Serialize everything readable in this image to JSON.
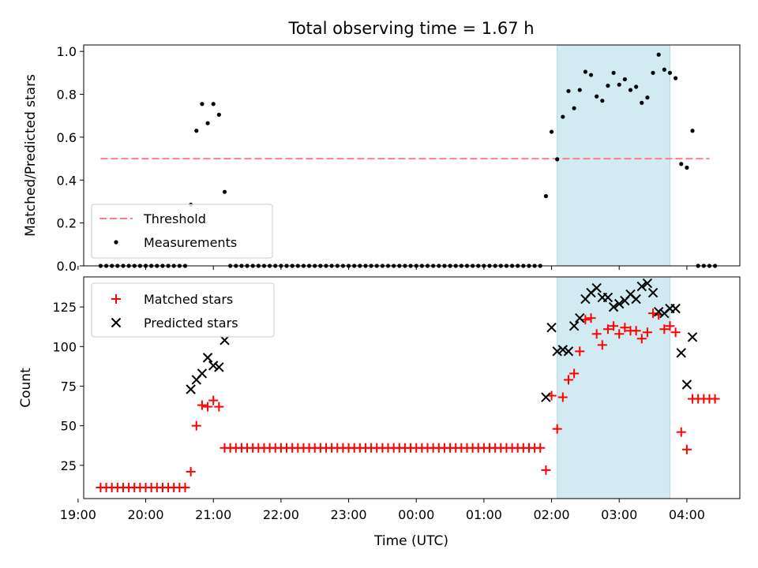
{
  "chart_data": [
    {
      "type": "scatter",
      "title": "Total observing time = 1.67 h",
      "xlabel": "",
      "ylabel": "Matched/Predicted stars",
      "ylim": [
        0,
        1.03
      ],
      "xlim": [
        "19:05",
        "04:47"
      ],
      "xticks": [
        "19:00",
        "20:00",
        "21:00",
        "22:00",
        "23:00",
        "00:00",
        "01:00",
        "02:00",
        "03:00",
        "04:00"
      ],
      "ytick_labels": [
        "0.0",
        "0.2",
        "0.4",
        "0.6",
        "0.8",
        "1.0"
      ],
      "shaded_interval": [
        "02:05",
        "03:45"
      ],
      "shaded_color": "#add8e6",
      "legend_position": "lower left",
      "threshold": {
        "name": "Threshold",
        "value": 0.5,
        "x_range": [
          "19:20",
          "04:20"
        ],
        "color": "#ff7f7f"
      },
      "series": [
        {
          "name": "Measurements",
          "color": "#000000",
          "points": [
            [
              "19:20",
              0
            ],
            [
              "19:25",
              0
            ],
            [
              "19:30",
              0
            ],
            [
              "19:35",
              0
            ],
            [
              "19:40",
              0
            ],
            [
              "19:45",
              0
            ],
            [
              "19:50",
              0
            ],
            [
              "19:55",
              0
            ],
            [
              "20:00",
              0
            ],
            [
              "20:05",
              0
            ],
            [
              "20:10",
              0
            ],
            [
              "20:15",
              0
            ],
            [
              "20:20",
              0
            ],
            [
              "20:25",
              0
            ],
            [
              "20:30",
              0
            ],
            [
              "20:35",
              0
            ],
            [
              "20:40",
              0.285
            ],
            [
              "20:45",
              0.63
            ],
            [
              "20:50",
              0.755
            ],
            [
              "20:55",
              0.665
            ],
            [
              "21:00",
              0.755
            ],
            [
              "21:05",
              0.705
            ],
            [
              "21:10",
              0.345
            ],
            [
              "21:15",
              0
            ],
            [
              "21:20",
              0
            ],
            [
              "21:25",
              0
            ],
            [
              "21:30",
              0
            ],
            [
              "21:35",
              0
            ],
            [
              "21:40",
              0
            ],
            [
              "21:45",
              0
            ],
            [
              "21:50",
              0
            ],
            [
              "21:55",
              0
            ],
            [
              "22:00",
              0
            ],
            [
              "22:05",
              0
            ],
            [
              "22:10",
              0
            ],
            [
              "22:15",
              0
            ],
            [
              "22:20",
              0
            ],
            [
              "22:25",
              0
            ],
            [
              "22:30",
              0
            ],
            [
              "22:35",
              0
            ],
            [
              "22:40",
              0
            ],
            [
              "22:45",
              0
            ],
            [
              "22:50",
              0
            ],
            [
              "22:55",
              0
            ],
            [
              "23:00",
              0
            ],
            [
              "23:05",
              0
            ],
            [
              "23:10",
              0
            ],
            [
              "23:15",
              0
            ],
            [
              "23:20",
              0
            ],
            [
              "23:25",
              0
            ],
            [
              "23:30",
              0
            ],
            [
              "23:35",
              0
            ],
            [
              "23:40",
              0
            ],
            [
              "23:45",
              0
            ],
            [
              "23:50",
              0
            ],
            [
              "23:55",
              0
            ],
            [
              "00:00",
              0
            ],
            [
              "00:05",
              0
            ],
            [
              "00:10",
              0
            ],
            [
              "00:15",
              0
            ],
            [
              "00:20",
              0
            ],
            [
              "00:25",
              0
            ],
            [
              "00:30",
              0
            ],
            [
              "00:35",
              0
            ],
            [
              "00:40",
              0
            ],
            [
              "00:45",
              0
            ],
            [
              "00:50",
              0
            ],
            [
              "00:55",
              0
            ],
            [
              "01:00",
              0
            ],
            [
              "01:05",
              0
            ],
            [
              "01:10",
              0
            ],
            [
              "01:15",
              0
            ],
            [
              "01:20",
              0
            ],
            [
              "01:25",
              0
            ],
            [
              "01:30",
              0
            ],
            [
              "01:35",
              0
            ],
            [
              "01:40",
              0
            ],
            [
              "01:45",
              0
            ],
            [
              "01:50",
              0
            ],
            [
              "01:55",
              0.325
            ],
            [
              "02:00",
              0.625
            ],
            [
              "02:05",
              0.497
            ],
            [
              "02:10",
              0.695
            ],
            [
              "02:15",
              0.815
            ],
            [
              "02:20",
              0.735
            ],
            [
              "02:25",
              0.82
            ],
            [
              "02:30",
              0.905
            ],
            [
              "02:35",
              0.89
            ],
            [
              "02:40",
              0.79
            ],
            [
              "02:45",
              0.77
            ],
            [
              "02:50",
              0.84
            ],
            [
              "02:55",
              0.9
            ],
            [
              "03:00",
              0.845
            ],
            [
              "03:05",
              0.87
            ],
            [
              "03:10",
              0.82
            ],
            [
              "03:15",
              0.835
            ],
            [
              "03:20",
              0.76
            ],
            [
              "03:25",
              0.785
            ],
            [
              "03:30",
              0.9
            ],
            [
              "03:35",
              0.985
            ],
            [
              "03:40",
              0.915
            ],
            [
              "03:45",
              0.9
            ],
            [
              "03:50",
              0.875
            ],
            [
              "03:55",
              0.475
            ],
            [
              "04:00",
              0.458
            ],
            [
              "04:05",
              0.63
            ],
            [
              "04:10",
              0
            ],
            [
              "04:15",
              0
            ],
            [
              "04:20",
              0
            ],
            [
              "04:25",
              0
            ]
          ]
        }
      ]
    },
    {
      "type": "scatter",
      "title": "",
      "xlabel": "Time (UTC)",
      "ylabel": "Count",
      "ylim": [
        4,
        144
      ],
      "xlim": [
        "19:05",
        "04:47"
      ],
      "xticks": [
        "19:00",
        "20:00",
        "21:00",
        "22:00",
        "23:00",
        "00:00",
        "01:00",
        "02:00",
        "03:00",
        "04:00"
      ],
      "ytick_labels": [
        "25",
        "50",
        "75",
        "100",
        "125"
      ],
      "shaded_interval": [
        "02:05",
        "03:45"
      ],
      "shaded_color": "#add8e6",
      "legend_position": "upper left",
      "series": [
        {
          "name": "Matched stars",
          "marker": "+",
          "color": "#ff0000",
          "points": [
            [
              "19:20",
              11
            ],
            [
              "19:25",
              11
            ],
            [
              "19:30",
              11
            ],
            [
              "19:35",
              11
            ],
            [
              "19:40",
              11
            ],
            [
              "19:45",
              11
            ],
            [
              "19:50",
              11
            ],
            [
              "19:55",
              11
            ],
            [
              "20:00",
              11
            ],
            [
              "20:05",
              11
            ],
            [
              "20:10",
              11
            ],
            [
              "20:15",
              11
            ],
            [
              "20:20",
              11
            ],
            [
              "20:25",
              11
            ],
            [
              "20:30",
              11
            ],
            [
              "20:35",
              11
            ],
            [
              "20:40",
              21
            ],
            [
              "20:45",
              50
            ],
            [
              "20:50",
              63
            ],
            [
              "20:55",
              62
            ],
            [
              "21:00",
              66
            ],
            [
              "21:05",
              62
            ],
            [
              "21:10",
              36
            ],
            [
              "21:15",
              36
            ],
            [
              "21:20",
              36
            ],
            [
              "21:25",
              36
            ],
            [
              "21:30",
              36
            ],
            [
              "21:35",
              36
            ],
            [
              "21:40",
              36
            ],
            [
              "21:45",
              36
            ],
            [
              "21:50",
              36
            ],
            [
              "21:55",
              36
            ],
            [
              "22:00",
              36
            ],
            [
              "22:05",
              36
            ],
            [
              "22:10",
              36
            ],
            [
              "22:15",
              36
            ],
            [
              "22:20",
              36
            ],
            [
              "22:25",
              36
            ],
            [
              "22:30",
              36
            ],
            [
              "22:35",
              36
            ],
            [
              "22:40",
              36
            ],
            [
              "22:45",
              36
            ],
            [
              "22:50",
              36
            ],
            [
              "22:55",
              36
            ],
            [
              "23:00",
              36
            ],
            [
              "23:05",
              36
            ],
            [
              "23:10",
              36
            ],
            [
              "23:15",
              36
            ],
            [
              "23:20",
              36
            ],
            [
              "23:25",
              36
            ],
            [
              "23:30",
              36
            ],
            [
              "23:35",
              36
            ],
            [
              "23:40",
              36
            ],
            [
              "23:45",
              36
            ],
            [
              "23:50",
              36
            ],
            [
              "23:55",
              36
            ],
            [
              "00:00",
              36
            ],
            [
              "00:05",
              36
            ],
            [
              "00:10",
              36
            ],
            [
              "00:15",
              36
            ],
            [
              "00:20",
              36
            ],
            [
              "00:25",
              36
            ],
            [
              "00:30",
              36
            ],
            [
              "00:35",
              36
            ],
            [
              "00:40",
              36
            ],
            [
              "00:45",
              36
            ],
            [
              "00:50",
              36
            ],
            [
              "00:55",
              36
            ],
            [
              "01:00",
              36
            ],
            [
              "01:05",
              36
            ],
            [
              "01:10",
              36
            ],
            [
              "01:15",
              36
            ],
            [
              "01:20",
              36
            ],
            [
              "01:25",
              36
            ],
            [
              "01:30",
              36
            ],
            [
              "01:35",
              36
            ],
            [
              "01:40",
              36
            ],
            [
              "01:45",
              36
            ],
            [
              "01:50",
              36
            ],
            [
              "01:55",
              22
            ],
            [
              "02:00",
              69
            ],
            [
              "02:05",
              48
            ],
            [
              "02:10",
              68
            ],
            [
              "02:15",
              79
            ],
            [
              "02:20",
              83
            ],
            [
              "02:25",
              97
            ],
            [
              "02:30",
              117
            ],
            [
              "02:35",
              118
            ],
            [
              "02:40",
              108
            ],
            [
              "02:45",
              101
            ],
            [
              "02:50",
              111
            ],
            [
              "02:55",
              113
            ],
            [
              "03:00",
              108
            ],
            [
              "03:05",
              112
            ],
            [
              "03:10",
              110
            ],
            [
              "03:15",
              110
            ],
            [
              "03:20",
              105
            ],
            [
              "03:25",
              109
            ],
            [
              "03:30",
              121
            ],
            [
              "03:35",
              120
            ],
            [
              "03:40",
              111
            ],
            [
              "03:45",
              113
            ],
            [
              "03:50",
              109
            ],
            [
              "03:55",
              46
            ],
            [
              "04:00",
              35
            ],
            [
              "04:05",
              67
            ],
            [
              "04:10",
              67
            ],
            [
              "04:15",
              67
            ],
            [
              "04:20",
              67
            ],
            [
              "04:25",
              67
            ]
          ]
        },
        {
          "name": "Predicted stars",
          "marker": "x",
          "color": "#000000",
          "points": [
            [
              "20:40",
              73
            ],
            [
              "20:45",
              79
            ],
            [
              "20:50",
              83
            ],
            [
              "20:55",
              93
            ],
            [
              "21:00",
              88
            ],
            [
              "21:05",
              87
            ],
            [
              "21:10",
              104
            ],
            [
              "01:55",
              68
            ],
            [
              "02:00",
              112
            ],
            [
              "02:05",
              97
            ],
            [
              "02:10",
              98
            ],
            [
              "02:15",
              97
            ],
            [
              "02:20",
              113
            ],
            [
              "02:25",
              118
            ],
            [
              "02:30",
              130
            ],
            [
              "02:35",
              134
            ],
            [
              "02:40",
              137
            ],
            [
              "02:45",
              131
            ],
            [
              "02:50",
              131
            ],
            [
              "02:55",
              125
            ],
            [
              "03:00",
              127
            ],
            [
              "03:05",
              129
            ],
            [
              "03:10",
              133
            ],
            [
              "03:15",
              130
            ],
            [
              "03:20",
              138
            ],
            [
              "03:25",
              140
            ],
            [
              "03:30",
              134
            ],
            [
              "03:35",
              122
            ],
            [
              "03:40",
              121
            ],
            [
              "03:45",
              124
            ],
            [
              "03:50",
              124
            ],
            [
              "03:55",
              96
            ],
            [
              "04:00",
              76
            ],
            [
              "04:05",
              106
            ]
          ]
        }
      ]
    }
  ]
}
